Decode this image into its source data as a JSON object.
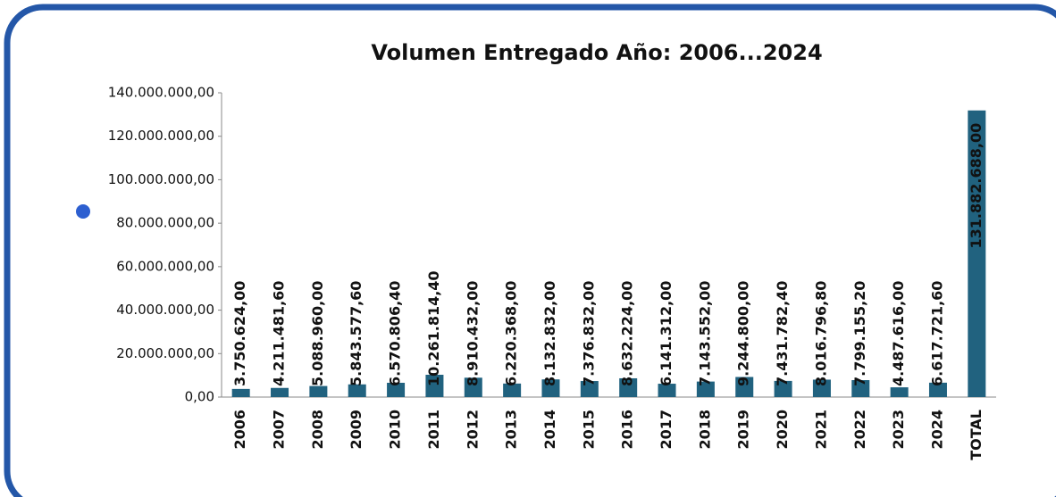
{
  "chart_data": {
    "type": "bar",
    "title": "Volumen Entregado Año: 2006...2024",
    "categories": [
      "2006",
      "2007",
      "2008",
      "2009",
      "2010",
      "2011",
      "2012",
      "2013",
      "2014",
      "2015",
      "2016",
      "2017",
      "2018",
      "2019",
      "2020",
      "2021",
      "2022",
      "2023",
      "2024",
      "TOTAL"
    ],
    "values": [
      3750624,
      4211481.6,
      5088960,
      5843577.6,
      6570806.4,
      10261814.4,
      8910432,
      6220368,
      8132832,
      7376832,
      8632224,
      6141312,
      7143552,
      9244800,
      7431782.4,
      8016796.8,
      7799155.2,
      4487616,
      6617721.6,
      131882688
    ],
    "value_labels": [
      "3.750.624,00",
      "4.211.481,60",
      "5.088.960,00",
      "5.843.577,60",
      "6.570.806,40",
      "10.261.814,40",
      "8.910.432,00",
      "6.220.368,00",
      "8.132.832,00",
      "7.376.832,00",
      "8.632.224,00",
      "6.141.312,00",
      "7.143.552,00",
      "9.244.800,00",
      "7.431.782,40",
      "8.016.796,80",
      "7.799.155,20",
      "4.487.616,00",
      "6.617.721,60",
      "131.882.688,00"
    ],
    "color": "#21627f",
    "ylim": [
      0,
      140000000
    ],
    "yticks": [
      {
        "value": 0,
        "label": "0,00"
      },
      {
        "value": 20000000,
        "label": "20.000.000,00"
      },
      {
        "value": 40000000,
        "label": "40.000.000,00"
      },
      {
        "value": 60000000,
        "label": "60.000.000,00"
      },
      {
        "value": 80000000,
        "label": "80.000.000,00"
      },
      {
        "value": 100000000,
        "label": "100.000.000,00"
      },
      {
        "value": 120000000,
        "label": "120.000.000,00"
      },
      {
        "value": 140000000,
        "label": "140.000.000,00"
      }
    ],
    "grid": false
  }
}
